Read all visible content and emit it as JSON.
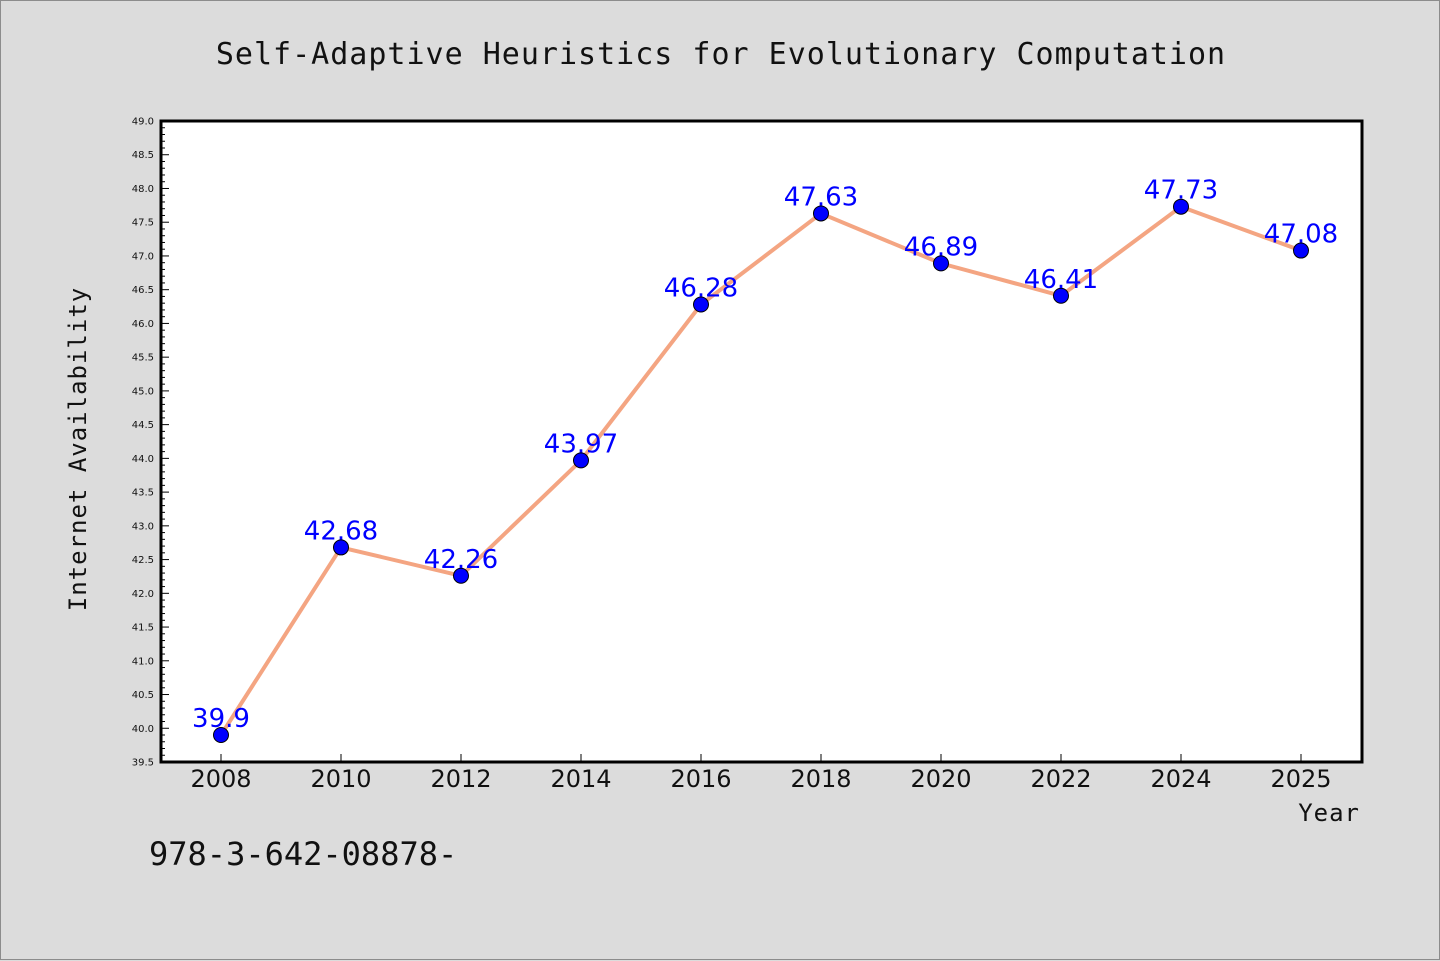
{
  "chart_data": {
    "type": "line",
    "title": "Self-Adaptive Heuristics for Evolutionary Computation",
    "xlabel": "Year",
    "ylabel": "Internet Availability",
    "x": [
      2008,
      2010,
      2012,
      2014,
      2016,
      2018,
      2020,
      2022,
      2024,
      2025
    ],
    "x_tick_labels": [
      "2008",
      "2010",
      "2012",
      "2014",
      "2016",
      "2018",
      "2020",
      "2022",
      "2024",
      "2025"
    ],
    "series": [
      {
        "values": [
          39.9,
          42.68,
          42.26,
          43.97,
          46.28,
          47.63,
          46.89,
          46.41,
          47.73,
          47.08
        ],
        "labels": [
          "39.9",
          "42.68",
          "42.26",
          "43.97",
          "46.28",
          "47.63",
          "46.89",
          "46.41",
          "47.73",
          "47.08"
        ]
      }
    ],
    "ylim": [
      39.5,
      49.0
    ],
    "y_ticks": [
      "39.5",
      "40.0",
      "40.5",
      "41.0",
      "41.5",
      "42.0",
      "42.5",
      "43.0",
      "43.5",
      "44.0",
      "44.5",
      "45.0",
      "45.5",
      "46.0",
      "46.5",
      "47.0",
      "47.5",
      "48.0",
      "48.5",
      "49.0"
    ],
    "grid": false,
    "legend": "none",
    "colors": {
      "line": "#f4a582",
      "marker": "#0000ff",
      "data_label": "#0000ff",
      "background": "#dcdcdc",
      "plot_area": "#ffffff"
    }
  },
  "footnote": "978-3-642-08878-"
}
